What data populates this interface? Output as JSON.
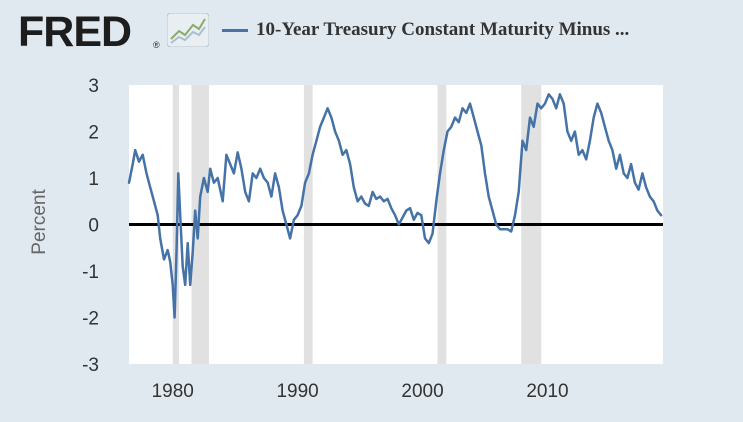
{
  "header": {
    "logo_text": "FRED",
    "logo_reg": "®",
    "title": "10-Year Treasury Constant Maturity Minus ..."
  },
  "icons": {
    "logo_graph": "line-graph-icon",
    "legend": "legend-line-icon"
  },
  "colors": {
    "series": "#4572a7",
    "recession": "#e1e1e1",
    "zero_line": "#000000",
    "background": "#e1e9f0",
    "plot_background": "#ffffff"
  },
  "chart_data": {
    "type": "line",
    "title": "10-Year Treasury Constant Maturity Minus ...",
    "xlabel": "",
    "ylabel": "Percent",
    "xlim": [
      1976.5,
      2019.25
    ],
    "ylim": [
      -3,
      3
    ],
    "x_ticks": [
      1980,
      1990,
      2000,
      2010
    ],
    "y_ticks": [
      -3,
      -2,
      -1,
      0,
      1,
      2,
      3
    ],
    "grid": false,
    "reference_line": 0,
    "recessions": [
      [
        1980.0,
        1980.5
      ],
      [
        1981.5,
        1982.9
      ],
      [
        1990.5,
        1991.2
      ],
      [
        2001.2,
        2001.9
      ],
      [
        2007.9,
        2009.5
      ]
    ],
    "series": [
      {
        "x": [
          1976.5,
          1976.8,
          1977.0,
          1977.3,
          1977.6,
          1977.9,
          1978.2,
          1978.5,
          1978.8,
          1979.0,
          1979.3,
          1979.6,
          1979.8,
          1980.0,
          1980.15,
          1980.3,
          1980.45,
          1980.6,
          1980.8,
          1981.0,
          1981.2,
          1981.4,
          1981.6,
          1981.8,
          1982.0,
          1982.2,
          1982.5,
          1982.8,
          1983.0,
          1983.3,
          1983.6,
          1984.0,
          1984.3,
          1984.6,
          1984.9,
          1985.2,
          1985.5,
          1985.8,
          1986.1,
          1986.4,
          1986.7,
          1987.0,
          1987.3,
          1987.6,
          1987.9,
          1988.2,
          1988.5,
          1988.8,
          1989.1,
          1989.4,
          1989.7,
          1990.0,
          1990.3,
          1990.6,
          1990.9,
          1991.2,
          1991.5,
          1991.8,
          1992.1,
          1992.4,
          1992.7,
          1993.0,
          1993.3,
          1993.6,
          1993.9,
          1994.2,
          1994.5,
          1994.8,
          1995.1,
          1995.4,
          1995.7,
          1996.0,
          1996.3,
          1996.6,
          1996.9,
          1997.2,
          1997.5,
          1997.8,
          1998.1,
          1998.4,
          1998.7,
          1999.0,
          1999.3,
          1999.6,
          1999.9,
          2000.2,
          2000.5,
          2000.8,
          2001.1,
          2001.4,
          2001.7,
          2002.0,
          2002.3,
          2002.6,
          2002.9,
          2003.2,
          2003.5,
          2003.8,
          2004.1,
          2004.4,
          2004.7,
          2005.0,
          2005.3,
          2005.6,
          2005.9,
          2006.2,
          2006.5,
          2006.8,
          2007.1,
          2007.4,
          2007.7,
          2008.0,
          2008.3,
          2008.6,
          2008.9,
          2009.2,
          2009.5,
          2009.8,
          2010.1,
          2010.4,
          2010.7,
          2011.0,
          2011.3,
          2011.6,
          2011.9,
          2012.2,
          2012.5,
          2012.8,
          2013.1,
          2013.4,
          2013.7,
          2014.0,
          2014.3,
          2014.6,
          2014.9,
          2015.2,
          2015.5,
          2015.8,
          2016.1,
          2016.4,
          2016.7,
          2017.0,
          2017.3,
          2017.6,
          2017.9,
          2018.2,
          2018.5,
          2018.8,
          2019.1
        ],
        "values": [
          0.9,
          1.3,
          1.6,
          1.35,
          1.5,
          1.1,
          0.8,
          0.5,
          0.2,
          -0.3,
          -0.75,
          -0.55,
          -0.8,
          -1.3,
          -2.0,
          -0.6,
          1.1,
          0.2,
          -0.9,
          -1.3,
          -0.4,
          -1.3,
          -0.6,
          0.3,
          -0.3,
          0.6,
          1.0,
          0.7,
          1.2,
          0.9,
          1.0,
          0.5,
          1.5,
          1.3,
          1.1,
          1.55,
          1.2,
          0.7,
          0.5,
          1.1,
          1.0,
          1.2,
          1.0,
          0.9,
          0.6,
          1.1,
          0.8,
          0.3,
          0.0,
          -0.3,
          0.1,
          0.2,
          0.4,
          0.9,
          1.1,
          1.5,
          1.8,
          2.1,
          2.3,
          2.5,
          2.3,
          2.0,
          1.8,
          1.5,
          1.6,
          1.3,
          0.8,
          0.5,
          0.6,
          0.45,
          0.4,
          0.7,
          0.55,
          0.6,
          0.5,
          0.55,
          0.35,
          0.2,
          0.0,
          0.15,
          0.3,
          0.35,
          0.1,
          0.25,
          0.2,
          -0.3,
          -0.4,
          -0.2,
          0.5,
          1.1,
          1.6,
          2.0,
          2.1,
          2.3,
          2.2,
          2.5,
          2.4,
          2.6,
          2.3,
          2.0,
          1.7,
          1.1,
          0.6,
          0.3,
          0.0,
          -0.1,
          -0.1,
          -0.1,
          -0.15,
          0.2,
          0.7,
          1.8,
          1.6,
          2.3,
          2.1,
          2.6,
          2.5,
          2.6,
          2.8,
          2.7,
          2.5,
          2.8,
          2.6,
          2.0,
          1.8,
          2.0,
          1.5,
          1.6,
          1.4,
          1.8,
          2.3,
          2.6,
          2.4,
          2.1,
          1.8,
          1.6,
          1.2,
          1.5,
          1.1,
          1.0,
          1.3,
          0.9,
          0.75,
          1.1,
          0.8,
          0.6,
          0.5,
          0.3,
          0.2
        ]
      }
    ]
  }
}
